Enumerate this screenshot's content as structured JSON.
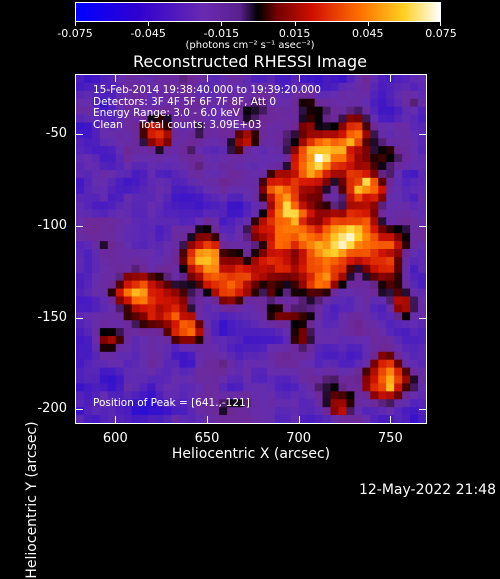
{
  "colorbar": {
    "tick_labels": [
      "-0.075",
      "-0.045",
      "-0.015",
      "0.015",
      "0.045",
      "0.075"
    ],
    "units": "(photons cm⁻² s⁻¹ asec⁻²)",
    "colors": [
      "#0000ff",
      "#3a00c8",
      "#6a2ab0",
      "#8a3aa0",
      "#000000",
      "#a00000",
      "#ff3000",
      "#ff9a00",
      "#ffff40",
      "#ffffff"
    ]
  },
  "title": "Reconstructed RHESSI Image",
  "info": {
    "line1": "15-Feb-2014 19:38:40.000 to 19:39:20.000",
    "line2": "Detectors: 3F 4F 5F 6F 7F 8F, Att 0",
    "line3": "Energy Range: 3.0 - 6.0 keV",
    "line4": "Clean     Total counts: 3.09E+03"
  },
  "peak": "Position of Peak = [641.,-121]",
  "axes": {
    "xlabel": "Heliocentric X (arcsec)",
    "ylabel": "Heliocentric Y (arcsec)",
    "x_ticks": [
      "600",
      "650",
      "700",
      "750"
    ],
    "y_ticks": [
      "-50",
      "-100",
      "-150",
      "-200"
    ],
    "x_range": [
      578,
      770
    ],
    "y_range": [
      -208,
      -17
    ]
  },
  "timestamp": "12-May-2022 21:48"
}
